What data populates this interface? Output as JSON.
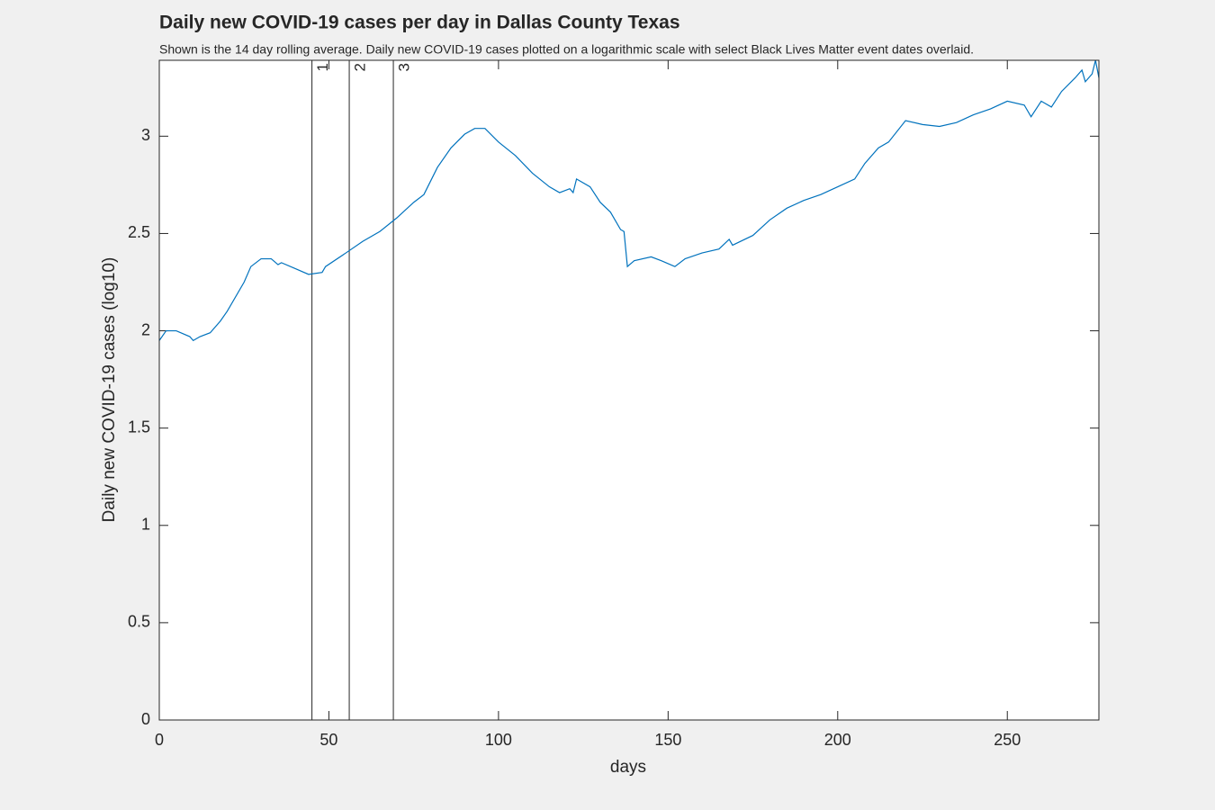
{
  "chart_data": {
    "type": "line",
    "title": "Daily new COVID-19 cases per day in Dallas County Texas",
    "subtitle": "Shown is the 14 day rolling average. Daily new COVID-19 cases plotted on a logarithmic scale with select Black Lives Matter event dates overlaid.",
    "x_label": "days",
    "y_label": "Daily new COVID-19 cases (log10)",
    "xlim": [
      0,
      277
    ],
    "ylim": [
      0,
      3.39
    ],
    "xticks": [
      0,
      50,
      100,
      150,
      200,
      250
    ],
    "yticks": [
      0,
      0.5,
      1,
      1.5,
      2,
      2.5,
      3
    ],
    "event_lines": [
      45,
      56,
      69
    ],
    "event_labels": [
      "1",
      "2",
      "3"
    ],
    "series": [
      {
        "color": "#0072bd",
        "x": [
          0,
          2,
          5,
          9,
          10,
          12,
          15,
          18,
          20,
          25,
          27,
          30,
          33,
          35,
          36,
          40,
          44,
          48,
          49,
          55,
          60,
          65,
          70,
          75,
          78,
          82,
          86,
          90,
          93,
          96,
          100,
          105,
          110,
          115,
          118,
          121,
          122,
          123,
          127,
          130,
          133,
          136,
          137,
          138,
          140,
          145,
          148,
          152,
          155,
          160,
          165,
          168,
          169,
          175,
          180,
          185,
          190,
          195,
          200,
          205,
          208,
          212,
          215,
          220,
          225,
          230,
          235,
          240,
          245,
          250,
          255,
          257,
          260,
          263,
          266,
          270,
          272,
          273,
          275,
          276,
          277
        ],
        "values": [
          1.95,
          2.0,
          2.0,
          1.97,
          1.95,
          1.97,
          1.99,
          2.05,
          2.1,
          2.25,
          2.33,
          2.37,
          2.37,
          2.34,
          2.35,
          2.32,
          2.29,
          2.3,
          2.33,
          2.4,
          2.46,
          2.51,
          2.58,
          2.66,
          2.7,
          2.84,
          2.94,
          3.01,
          3.04,
          3.04,
          2.97,
          2.9,
          2.81,
          2.74,
          2.71,
          2.73,
          2.71,
          2.78,
          2.74,
          2.66,
          2.61,
          2.52,
          2.51,
          2.33,
          2.36,
          2.38,
          2.36,
          2.33,
          2.37,
          2.4,
          2.42,
          2.47,
          2.44,
          2.49,
          2.57,
          2.63,
          2.67,
          2.7,
          2.74,
          2.78,
          2.86,
          2.94,
          2.97,
          3.08,
          3.06,
          3.05,
          3.07,
          3.11,
          3.14,
          3.18,
          3.16,
          3.1,
          3.18,
          3.15,
          3.23,
          3.3,
          3.34,
          3.28,
          3.32,
          3.39,
          3.3
        ]
      }
    ]
  }
}
